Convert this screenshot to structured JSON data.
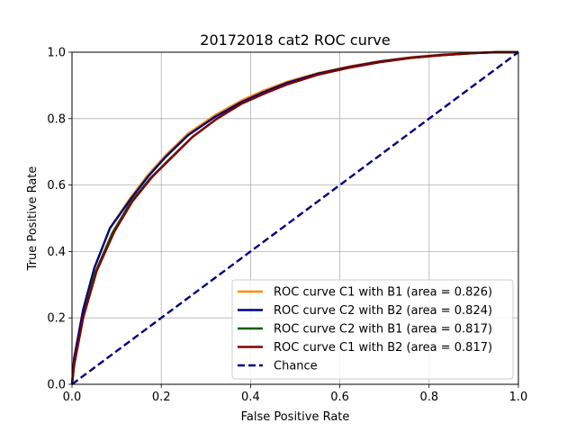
{
  "chart_data": {
    "type": "line",
    "title": "20172018 cat2 ROC curve",
    "xlabel": "False Positive Rate",
    "ylabel": "True Positive Rate",
    "xlim": [
      0,
      1
    ],
    "ylim": [
      0,
      1
    ],
    "xticks": [
      "0.0",
      "0.2",
      "0.4",
      "0.6",
      "0.8",
      "1.0"
    ],
    "yticks": [
      "0.0",
      "0.2",
      "0.4",
      "0.6",
      "0.8",
      "1.0"
    ],
    "grid": true,
    "legend_position": "bottom-right",
    "series": [
      {
        "name": "ROC curve C1 with B1 (area = 0.826)",
        "color": "#ff8c00",
        "dash": "solid",
        "x": [
          0,
          0.005,
          0.025,
          0.05,
          0.085,
          0.13,
          0.17,
          0.21,
          0.26,
          0.32,
          0.38,
          0.43,
          0.48,
          0.55,
          0.62,
          0.69,
          0.76,
          0.83,
          0.9,
          0.95,
          1.0
        ],
        "y": [
          0,
          0.08,
          0.22,
          0.35,
          0.47,
          0.56,
          0.63,
          0.69,
          0.755,
          0.81,
          0.855,
          0.885,
          0.91,
          0.937,
          0.957,
          0.973,
          0.985,
          0.993,
          0.998,
          1.0,
          1.0
        ]
      },
      {
        "name": "ROC curve C2 with B2 (area = 0.824)",
        "color": "#000080",
        "dash": "solid",
        "x": [
          0,
          0.005,
          0.025,
          0.05,
          0.085,
          0.13,
          0.17,
          0.21,
          0.26,
          0.32,
          0.38,
          0.43,
          0.48,
          0.55,
          0.62,
          0.69,
          0.76,
          0.83,
          0.9,
          0.95,
          1.0
        ],
        "y": [
          0,
          0.08,
          0.225,
          0.35,
          0.47,
          0.555,
          0.625,
          0.685,
          0.75,
          0.805,
          0.85,
          0.88,
          0.907,
          0.935,
          0.955,
          0.972,
          0.984,
          0.992,
          0.997,
          1.0,
          1.0
        ]
      },
      {
        "name": "ROC curve C2 with B1 (area = 0.817)",
        "color": "#006400",
        "dash": "solid",
        "x": [
          0,
          0.005,
          0.025,
          0.05,
          0.09,
          0.13,
          0.175,
          0.22,
          0.27,
          0.325,
          0.38,
          0.43,
          0.48,
          0.55,
          0.62,
          0.69,
          0.76,
          0.83,
          0.9,
          0.95,
          1.0
        ],
        "y": [
          0,
          0.06,
          0.2,
          0.33,
          0.455,
          0.545,
          0.62,
          0.68,
          0.745,
          0.8,
          0.845,
          0.875,
          0.902,
          0.932,
          0.953,
          0.97,
          0.983,
          0.991,
          0.997,
          1.0,
          1.0
        ]
      },
      {
        "name": "ROC curve C1 with B2 (area = 0.817)",
        "color": "#800000",
        "dash": "solid",
        "x": [
          0,
          0.005,
          0.025,
          0.055,
          0.095,
          0.135,
          0.18,
          0.225,
          0.27,
          0.325,
          0.38,
          0.43,
          0.48,
          0.55,
          0.62,
          0.69,
          0.76,
          0.83,
          0.9,
          0.95,
          1.0
        ],
        "y": [
          0,
          0.06,
          0.2,
          0.34,
          0.46,
          0.55,
          0.625,
          0.685,
          0.745,
          0.8,
          0.845,
          0.875,
          0.902,
          0.932,
          0.953,
          0.97,
          0.983,
          0.991,
          0.997,
          1.0,
          1.0
        ]
      },
      {
        "name": "Chance",
        "color": "#000080",
        "dash": "dashed",
        "x": [
          0,
          1
        ],
        "y": [
          0,
          1
        ]
      }
    ]
  }
}
